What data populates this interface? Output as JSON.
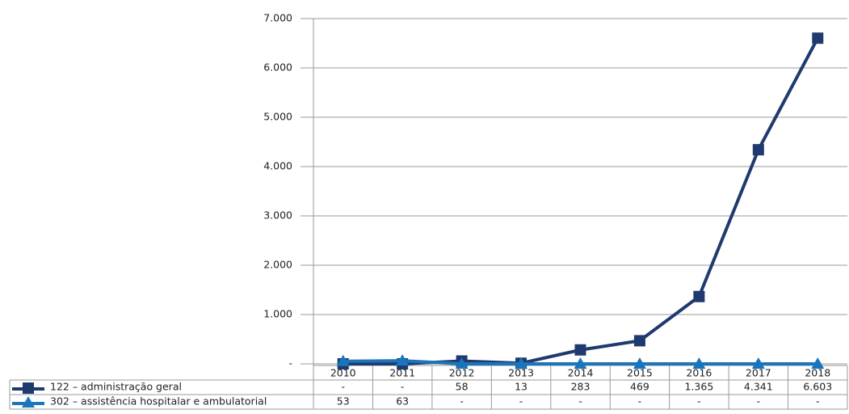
{
  "chart_data": {
    "type": "line",
    "categories": [
      "2010",
      "2011",
      "2012",
      "2013",
      "2014",
      "2015",
      "2016",
      "2017",
      "2018"
    ],
    "series": [
      {
        "name": "122 – administração geral",
        "color": "#1f3a6e",
        "marker": "square",
        "values": [
          0,
          0,
          58,
          13,
          283,
          469,
          1365,
          4341,
          6603
        ],
        "value_labels": [
          "-",
          "-",
          "58",
          "13",
          "283",
          "469",
          "1.365",
          "4.341",
          "6.603"
        ]
      },
      {
        "name": "302 – assistência hospitalar e ambulatorial",
        "color": "#1a75bc",
        "marker": "triangle",
        "values": [
          53,
          63,
          0,
          0,
          0,
          0,
          0,
          0,
          0
        ],
        "value_labels": [
          "53",
          "63",
          "-",
          "-",
          "-",
          "-",
          "-",
          "-",
          "-"
        ]
      }
    ],
    "ylim": [
      0,
      7000
    ],
    "yticks": [
      {
        "value": 0,
        "label": "-"
      },
      {
        "value": 1000,
        "label": "1.000"
      },
      {
        "value": 2000,
        "label": "2.000"
      },
      {
        "value": 3000,
        "label": "3.000"
      },
      {
        "value": 4000,
        "label": "4.000"
      },
      {
        "value": 5000,
        "label": "5.000"
      },
      {
        "value": 6000,
        "label": "6.000"
      },
      {
        "value": 7000,
        "label": "7.000"
      }
    ],
    "grid": true
  }
}
